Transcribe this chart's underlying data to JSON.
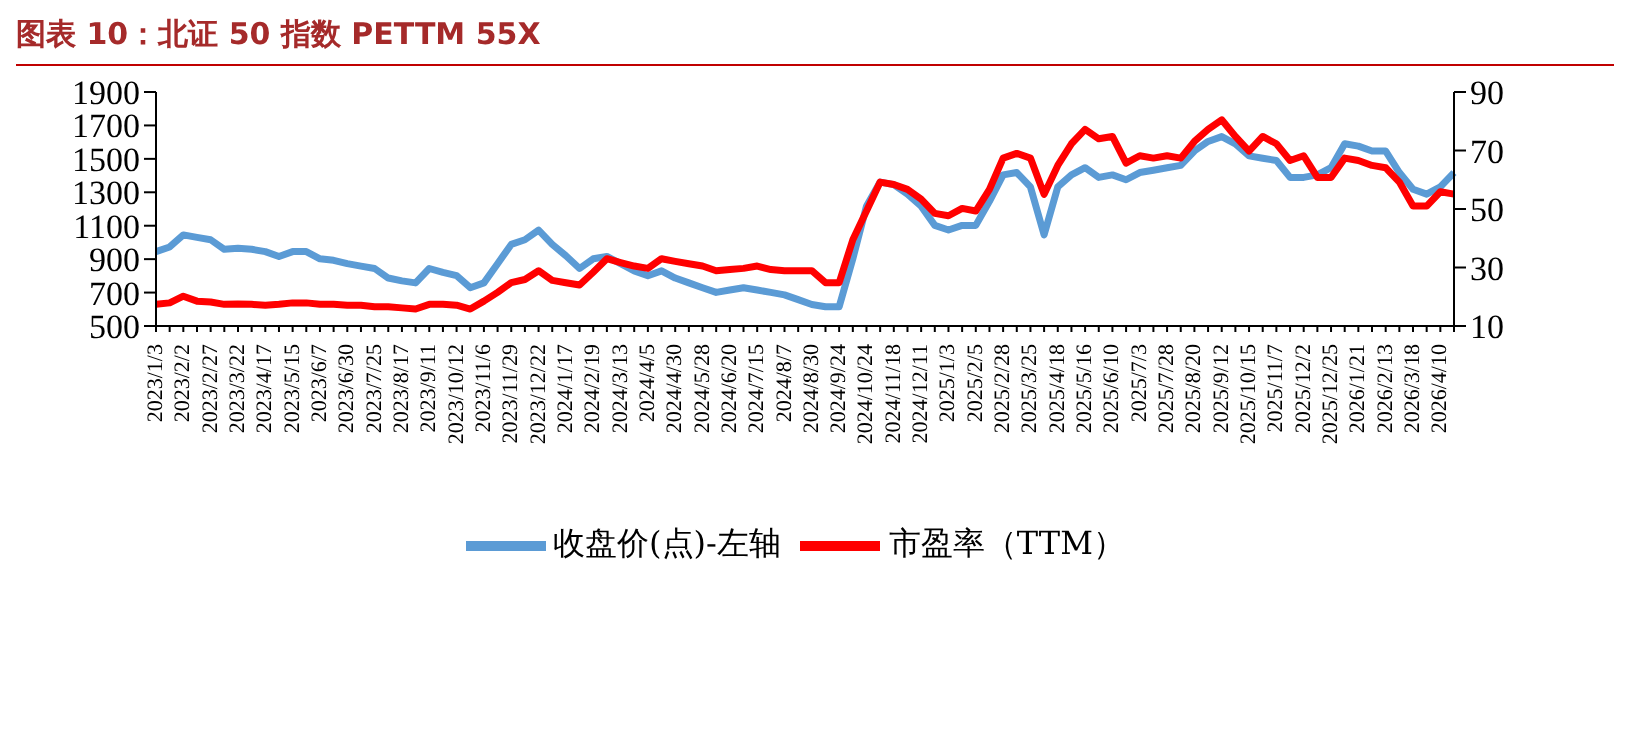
{
  "chart_data": {
    "type": "line",
    "title": "图表 10：北证 50 指数 PETTM 55X",
    "categories": [
      "2023/1/3",
      null,
      "2023/2/2",
      null,
      "2023/2/27",
      null,
      "2023/3/22",
      null,
      "2023/4/17",
      null,
      "2023/5/15",
      null,
      "2023/6/7",
      null,
      "2023/6/30",
      null,
      "2023/7/25",
      null,
      "2023/8/17",
      null,
      "2023/9/11",
      null,
      "2023/10/12",
      null,
      "2023/11/6",
      null,
      "2023/11/29",
      null,
      "2023/12/22",
      null,
      "2024/1/17",
      null,
      "2024/2/19",
      null,
      "2024/3/13",
      null,
      "2024/4/5",
      null,
      "2024/4/30",
      null,
      "2024/5/28",
      null,
      "2024/6/20",
      null,
      "2024/7/15",
      null,
      "2024/8/7",
      null,
      "2024/8/30",
      null,
      "2024/9/24",
      null,
      "2024/10/24",
      null,
      "2024/11/18",
      null,
      "2024/12/11",
      null,
      "2025/1/3",
      null,
      "2025/2/5",
      null,
      "2025/2/28",
      null,
      "2025/3/25",
      null,
      "2025/4/18",
      null,
      "2025/5/16",
      null,
      "2025/6/10",
      null,
      "2025/7/3",
      null,
      "2025/7/28",
      null,
      "2025/8/20",
      null,
      "2025/9/12",
      null,
      "2025/10/15",
      null,
      "2025/11/7",
      null,
      "2025/12/2",
      null,
      "2025/12/25",
      null,
      "2026/1/21",
      null,
      "2026/2/13",
      null,
      "2026/3/18",
      null,
      "2026/4/10",
      null
    ],
    "series": [
      {
        "name": "收盘价(点)-左轴",
        "color": "#5b9bd5",
        "values": [
          945,
          973,
          1045,
          1030,
          1016,
          959,
          965,
          959,
          945,
          916,
          945,
          945,
          902,
          893,
          873,
          858,
          844,
          787,
          770,
          758,
          844,
          821,
          801,
          729,
          758,
          873,
          988,
          1016,
          1074,
          988,
          920,
          844,
          902,
          916,
          873,
          830,
          801,
          830,
          787,
          758,
          729,
          701,
          715,
          729,
          715,
          701,
          686,
          658,
          629,
          615,
          615,
          902,
          1217,
          1361,
          1346,
          1289,
          1217,
          1102,
          1074,
          1102,
          1102,
          1246,
          1404,
          1418,
          1332,
          1045,
          1332,
          1404,
          1447,
          1389,
          1404,
          1375,
          1418,
          1432,
          1447,
          1461,
          1547,
          1604,
          1633,
          1590,
          1518,
          1504,
          1490,
          1389,
          1389,
          1404,
          1447,
          1590,
          1576,
          1547,
          1547,
          1418,
          1318,
          1289,
          1332,
          1418
        ]
      },
      {
        "name": "市盈率（TTM）",
        "color": "#ff0000",
        "axis": "y2",
        "values": [
          17.4,
          17.9,
          20.2,
          18.5,
          18.2,
          17.4,
          17.5,
          17.4,
          17.1,
          17.4,
          17.9,
          17.9,
          17.4,
          17.4,
          17.1,
          17.1,
          16.6,
          16.6,
          16.2,
          15.8,
          17.4,
          17.4,
          17.1,
          15.8,
          18.5,
          21.5,
          24.8,
          25.9,
          28.9,
          25.6,
          24.8,
          24.0,
          28.4,
          33,
          31.7,
          30.5,
          29.7,
          33,
          32.1,
          31.3,
          30.5,
          28.9,
          29.3,
          29.7,
          30.5,
          29.3,
          28.9,
          28.9,
          28.9,
          24.8,
          24.8,
          39.5,
          49.3,
          59.2,
          58.4,
          56.7,
          53.4,
          48.5,
          47.7,
          50.2,
          49.3,
          56.7,
          67.4,
          69,
          67.4,
          55,
          64.9,
          72.3,
          77.2,
          74,
          74.8,
          65.7,
          68.2,
          67.4,
          68.2,
          67.4,
          73.1,
          77.2,
          80.5,
          74.8,
          69.8,
          74.8,
          72.3,
          66.6,
          68.2,
          60.8,
          60.8,
          67.4,
          66.6,
          64.9,
          64.1,
          59.2,
          51,
          51,
          55.9,
          55.1
        ]
      }
    ],
    "ylim": [
      500,
      1900
    ],
    "yticks": [
      500,
      700,
      900,
      1100,
      1300,
      1500,
      1700,
      1900
    ],
    "y2lim": [
      10,
      90
    ],
    "y2ticks": [
      10,
      30,
      50,
      70,
      90
    ],
    "grid": false,
    "legend": "bottom",
    "marker": "none",
    "line_style": "solid"
  }
}
